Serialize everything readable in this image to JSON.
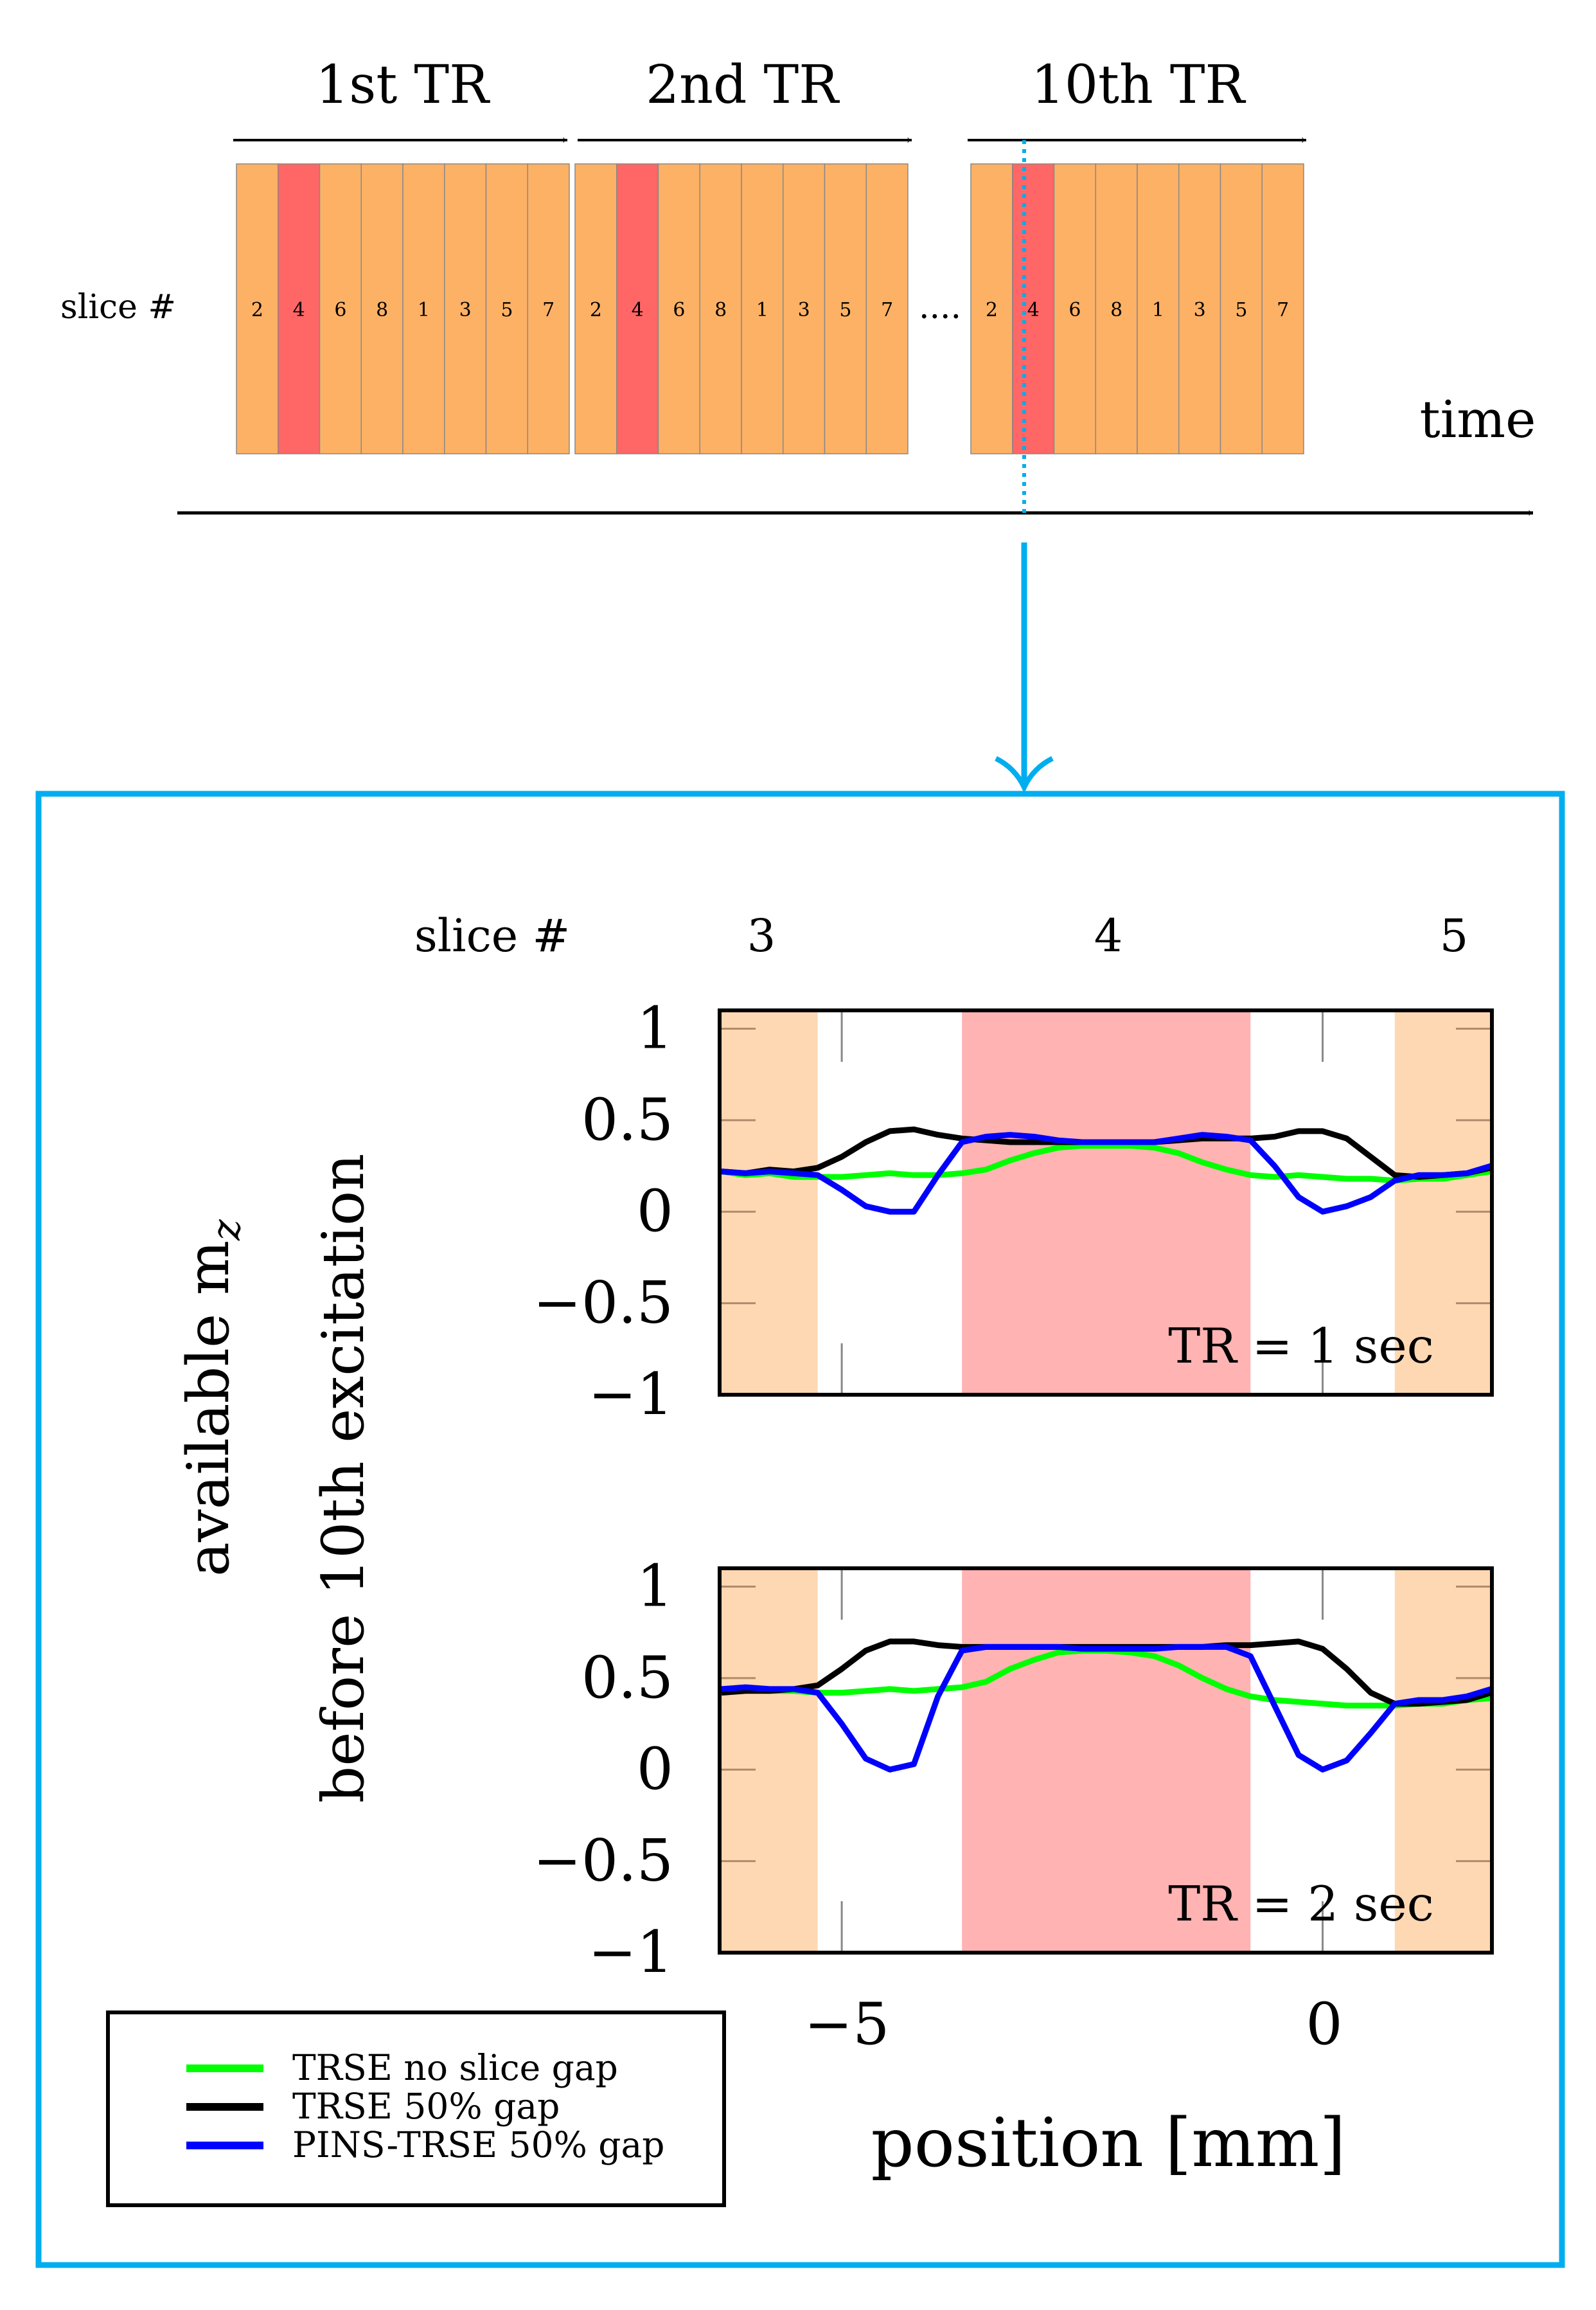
{
  "timeline": {
    "tr_labels": [
      "1st TR",
      "2nd TR",
      "10th TR"
    ],
    "slice_label": "slice #",
    "slice_order": [
      "2",
      "4",
      "6",
      "8",
      "1",
      "3",
      "5",
      "7"
    ],
    "highlight_slice": "4",
    "ellipsis": "....",
    "time_label": "time"
  },
  "colors": {
    "slice_cell": "#FDB165",
    "slice_highlight": "#FF6666",
    "neighbor_band": "#FDD8B3",
    "target_band": "#FFB3B3",
    "accent_cyan": "#00AEEF",
    "green": "#00FF00",
    "black": "#000000",
    "blue": "#0000FF"
  },
  "slice_header": {
    "label": "slice #",
    "slices": [
      "3",
      "4",
      "5"
    ]
  },
  "chart_data": [
    {
      "type": "line",
      "annotation": "TR = 1 sec",
      "ylabel": "available m_z before 10th excitation",
      "xlabel": "position [mm]",
      "xlim": [
        -6.27,
        1.76
      ],
      "ylim": [
        -1,
        1.1
      ],
      "yticks": [
        "1",
        "0.5",
        "0",
        "−0.5",
        "−1"
      ],
      "ytick_values": [
        1,
        0.5,
        0,
        -0.5,
        -1
      ],
      "xtick_values": [
        -5,
        0
      ],
      "bands": [
        {
          "slice": "3",
          "from": -6.27,
          "to": -5.25,
          "kind": "neighbor"
        },
        {
          "slice": "4",
          "from": -3.75,
          "to": -0.75,
          "kind": "target"
        },
        {
          "slice": "5",
          "from": 0.75,
          "to": 1.76,
          "kind": "neighbor"
        }
      ],
      "x": [
        -6.25,
        -6.0,
        -5.75,
        -5.5,
        -5.25,
        -5.0,
        -4.75,
        -4.5,
        -4.25,
        -4.0,
        -3.75,
        -3.5,
        -3.25,
        -3.0,
        -2.75,
        -2.5,
        -2.25,
        -2.0,
        -1.75,
        -1.5,
        -1.25,
        -1.0,
        -0.75,
        -0.5,
        -0.25,
        0,
        0.25,
        0.5,
        0.75,
        1.0,
        1.25,
        1.5,
        1.75
      ],
      "series": [
        {
          "name": "TRSE no slice gap",
          "color": "green",
          "values": [
            0.22,
            0.2,
            0.21,
            0.19,
            0.19,
            0.19,
            0.2,
            0.21,
            0.2,
            0.2,
            0.21,
            0.23,
            0.28,
            0.32,
            0.35,
            0.36,
            0.36,
            0.36,
            0.35,
            0.32,
            0.27,
            0.23,
            0.2,
            0.19,
            0.2,
            0.19,
            0.18,
            0.18,
            0.17,
            0.18,
            0.18,
            0.2,
            0.22
          ]
        },
        {
          "name": "TRSE 50% gap",
          "color": "black",
          "values": [
            0.22,
            0.21,
            0.23,
            0.22,
            0.24,
            0.3,
            0.38,
            0.44,
            0.45,
            0.42,
            0.4,
            0.39,
            0.38,
            0.38,
            0.38,
            0.38,
            0.38,
            0.38,
            0.38,
            0.39,
            0.4,
            0.4,
            0.4,
            0.41,
            0.44,
            0.44,
            0.4,
            0.3,
            0.2,
            0.19,
            0.2,
            0.21,
            0.24
          ]
        },
        {
          "name": "PINS-TRSE 50% gap",
          "color": "blue",
          "values": [
            0.22,
            0.21,
            0.22,
            0.21,
            0.2,
            0.12,
            0.03,
            0.0,
            0.0,
            0.2,
            0.38,
            0.41,
            0.42,
            0.41,
            0.39,
            0.38,
            0.38,
            0.38,
            0.38,
            0.4,
            0.42,
            0.41,
            0.39,
            0.25,
            0.08,
            0.0,
            0.03,
            0.08,
            0.17,
            0.2,
            0.2,
            0.21,
            0.25
          ]
        }
      ]
    },
    {
      "type": "line",
      "annotation": "TR = 2 sec",
      "xlim": [
        -6.27,
        1.76
      ],
      "ylim": [
        -1,
        1.1
      ],
      "yticks": [
        "1",
        "0.5",
        "0",
        "−0.5",
        "−1"
      ],
      "ytick_values": [
        1,
        0.5,
        0,
        -0.5,
        -1
      ],
      "xticks": [
        "−5",
        "0"
      ],
      "xtick_values": [
        -5,
        0
      ],
      "bands": [
        {
          "slice": "3",
          "from": -6.27,
          "to": -5.25,
          "kind": "neighbor"
        },
        {
          "slice": "4",
          "from": -3.75,
          "to": -0.75,
          "kind": "target"
        },
        {
          "slice": "5",
          "from": 0.75,
          "to": 1.76,
          "kind": "neighbor"
        }
      ],
      "x": [
        -6.25,
        -6.0,
        -5.75,
        -5.5,
        -5.25,
        -5.0,
        -4.75,
        -4.5,
        -4.25,
        -4.0,
        -3.75,
        -3.5,
        -3.25,
        -3.0,
        -2.75,
        -2.5,
        -2.25,
        -2.0,
        -1.75,
        -1.5,
        -1.25,
        -1.0,
        -0.75,
        -0.5,
        -0.25,
        0,
        0.25,
        0.5,
        0.75,
        1.0,
        1.25,
        1.5,
        1.75
      ],
      "series": [
        {
          "name": "TRSE no slice gap",
          "color": "green",
          "values": [
            0.43,
            0.44,
            0.43,
            0.43,
            0.42,
            0.42,
            0.43,
            0.44,
            0.43,
            0.44,
            0.45,
            0.48,
            0.55,
            0.6,
            0.64,
            0.65,
            0.65,
            0.64,
            0.62,
            0.57,
            0.5,
            0.44,
            0.4,
            0.38,
            0.37,
            0.36,
            0.35,
            0.35,
            0.35,
            0.36,
            0.36,
            0.38,
            0.39
          ]
        },
        {
          "name": "TRSE 50% gap",
          "color": "black",
          "values": [
            0.42,
            0.43,
            0.43,
            0.44,
            0.46,
            0.55,
            0.65,
            0.7,
            0.7,
            0.68,
            0.67,
            0.67,
            0.67,
            0.67,
            0.67,
            0.67,
            0.67,
            0.67,
            0.67,
            0.67,
            0.67,
            0.68,
            0.68,
            0.69,
            0.7,
            0.66,
            0.55,
            0.42,
            0.36,
            0.36,
            0.37,
            0.38,
            0.42
          ]
        },
        {
          "name": "PINS-TRSE 50% gap",
          "color": "blue",
          "values": [
            0.44,
            0.45,
            0.44,
            0.44,
            0.42,
            0.25,
            0.06,
            0.0,
            0.03,
            0.4,
            0.65,
            0.67,
            0.67,
            0.67,
            0.67,
            0.66,
            0.66,
            0.66,
            0.66,
            0.67,
            0.67,
            0.67,
            0.62,
            0.35,
            0.08,
            0.0,
            0.05,
            0.2,
            0.36,
            0.38,
            0.38,
            0.4,
            0.44
          ]
        }
      ]
    }
  ],
  "axes": {
    "ylabel_line1": "available m",
    "ylabel_sub": "z",
    "ylabel_line2": "before 10th excitation",
    "xlabel": "position [mm]"
  },
  "legend": {
    "placement": "bottom-left",
    "entries": [
      {
        "label": "TRSE no slice gap",
        "color": "green"
      },
      {
        "label": "TRSE 50% gap",
        "color": "black"
      },
      {
        "label": "PINS-TRSE 50% gap",
        "color": "blue"
      }
    ]
  }
}
